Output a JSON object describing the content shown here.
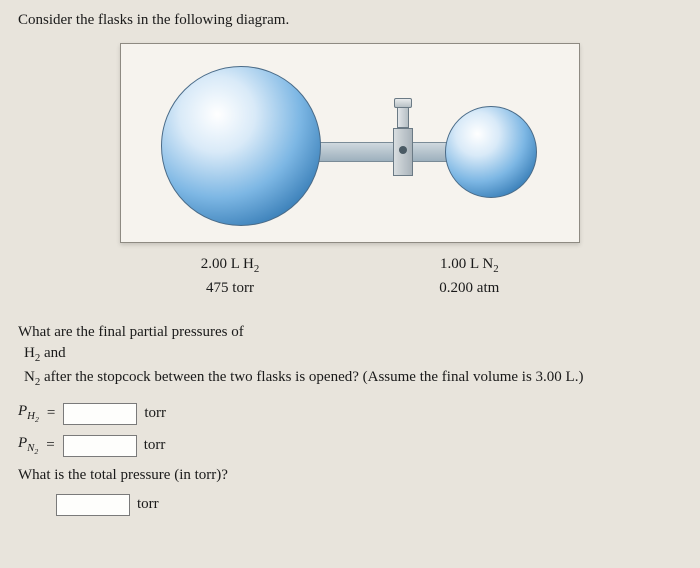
{
  "prompt": "Consider the flasks in the following diagram.",
  "flask_left": {
    "line1_pre": "2.00 L H",
    "line1_sub": "2",
    "line2": "475 torr"
  },
  "flask_right": {
    "line1_pre": "1.00 L N",
    "line1_sub": "2",
    "line2": "0.200 atm"
  },
  "question": {
    "line1": "What are the final partial pressures of",
    "line2_pre": "H",
    "line2_sub": "2",
    "line2_post": " and",
    "line3_pre": "N",
    "line3_sub": "2",
    "line3_post": " after the stopcock between the two flasks is opened? (Assume the final volume is 3.00 L.)"
  },
  "answers": {
    "ph2_var": "P",
    "ph2_sub1": "H",
    "ph2_sub2": "2",
    "pn2_var": "P",
    "pn2_sub1": "N",
    "pn2_sub2": "2",
    "eq": "=",
    "unit": "torr"
  },
  "question2": "What is the total pressure (in torr)?",
  "colors": {
    "page_bg": "#e8e4dc",
    "diagram_bg": "#f6f3ee",
    "flask_light": "#d9eaf8",
    "flask_mid": "#7db7e4",
    "flask_dark": "#1f5a8c"
  }
}
